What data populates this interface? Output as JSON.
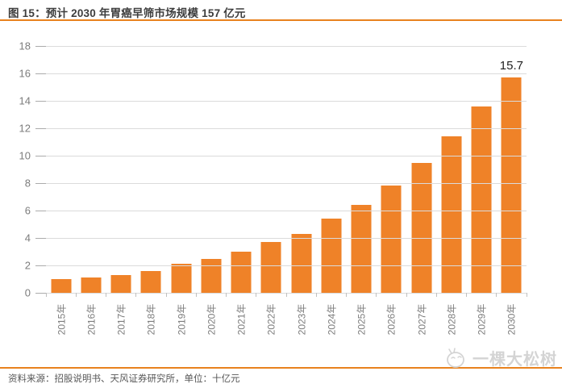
{
  "figure": {
    "title": "图 15：预计 2030 年胃癌早筛市场规模 157 亿元",
    "source_note": "资料来源：招股说明书、天风证券研究所，单位：十亿元",
    "watermark_text": "一棵大松树"
  },
  "colors": {
    "accent_orange": "#e8821e",
    "bar_orange": "#ef8228",
    "gridline_gray": "#dbdbdb",
    "tick_gray": "#ababab",
    "axis_text_gray": "#7c7c7c",
    "title_text": "#3d3d3d",
    "footer_text": "#565656",
    "data_label_text": "#1f1f1f",
    "watermark_gray": "#d4d4d4"
  },
  "chart_data": {
    "type": "bar",
    "title": "预计 2030 年胃癌早筛市场规模 157 亿元",
    "categories": [
      "2015年",
      "2016年",
      "2017年",
      "2018年",
      "2019年",
      "2020年",
      "2021年",
      "2022年",
      "2023年",
      "2024年",
      "2025年",
      "2026年",
      "2027年",
      "2028年",
      "2029年",
      "2030年"
    ],
    "values": [
      1.0,
      1.1,
      1.3,
      1.6,
      2.1,
      2.5,
      3.0,
      3.7,
      4.3,
      5.4,
      6.4,
      7.8,
      9.5,
      11.4,
      13.6,
      15.7
    ],
    "unit": "十亿元",
    "xlabel": "",
    "ylabel": "",
    "ylim": [
      0,
      18
    ],
    "ytick_step": 2,
    "grid": true,
    "legend_position": "none",
    "bar_color": "#ef8228",
    "data_labels": [
      {
        "index": 15,
        "text": "15.7"
      }
    ]
  }
}
